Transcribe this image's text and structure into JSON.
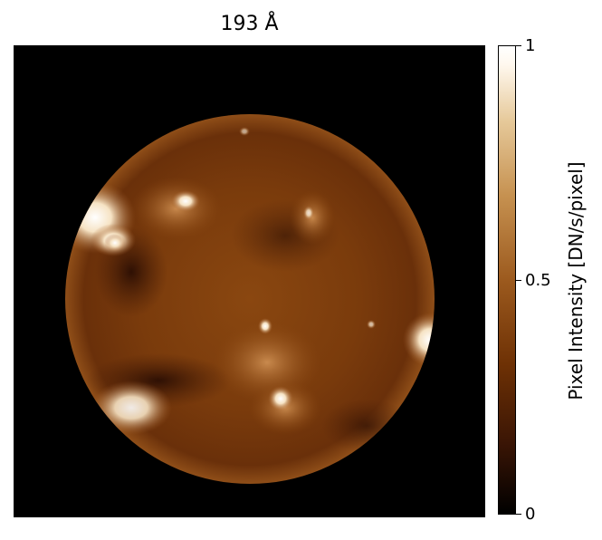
{
  "figure": {
    "title": "193 Å",
    "colorbar": {
      "label": "Pixel Intensity [DN/s/pixel]",
      "ticks": [
        {
          "value": 1,
          "label": "1"
        },
        {
          "value": 0.5,
          "label": "0.5"
        },
        {
          "value": 0,
          "label": "0"
        }
      ],
      "range": [
        0,
        1
      ],
      "colormap": [
        "#000000",
        "#6e3105",
        "#9c5a1e",
        "#e6c99a",
        "#ffffff"
      ]
    },
    "image": {
      "subject": "solar disk",
      "background": "#000000"
    }
  }
}
